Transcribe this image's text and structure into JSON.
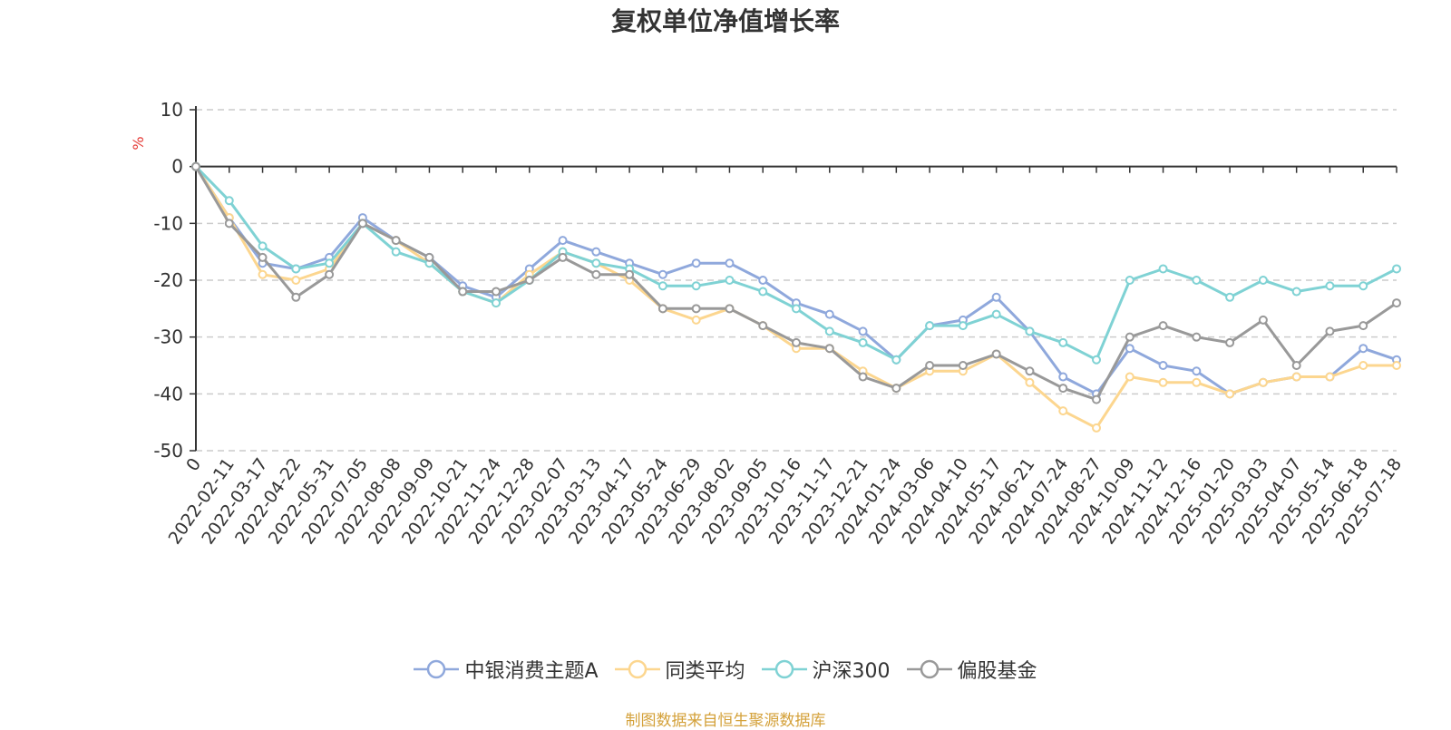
{
  "chart_data": {
    "type": "line",
    "title": "复权单位净值增长率",
    "ylabel": "%",
    "ylim": [
      -50,
      10
    ],
    "y_ticks": [
      "10",
      "0",
      "-10",
      "-20",
      "-30",
      "-40",
      "-50"
    ],
    "grid": true,
    "legend_position": "bottom",
    "x_labels": [
      "0",
      "2022-02-11",
      "2022-03-17",
      "2022-04-22",
      "2022-05-31",
      "2022-07-05",
      "2022-08-08",
      "2022-09-09",
      "2022-10-21",
      "2022-11-24",
      "2022-12-28",
      "2023-02-07",
      "2023-03-13",
      "2023-04-17",
      "2023-05-24",
      "2023-06-29",
      "2023-08-02",
      "2023-09-05",
      "2023-10-16",
      "2023-11-17",
      "2023-12-21",
      "2024-01-24",
      "2024-03-06",
      "2024-04-10",
      "2024-05-17",
      "2024-06-21",
      "2024-07-24",
      "2024-08-27",
      "2024-10-09",
      "2024-11-12",
      "2024-12-16",
      "2025-01-20",
      "2025-03-03",
      "2025-04-07",
      "2025-05-14",
      "2025-06-18",
      "2025-07-18"
    ],
    "series": [
      {
        "name": "中银消费主题A",
        "color": "#8fa8dc",
        "values": [
          0,
          -9,
          -17,
          -18,
          -16,
          -9,
          -13,
          -16,
          -21,
          -23,
          -18,
          -13,
          -15,
          -17,
          -19,
          -17,
          -17,
          -20,
          -24,
          -26,
          -29,
          -34,
          -28,
          -27,
          -23,
          -29,
          -37,
          -40,
          -32,
          -35,
          -36,
          -40,
          -38,
          -37,
          -37,
          -32,
          -34
        ]
      },
      {
        "name": "同类平均",
        "color": "#fcd68f",
        "values": [
          0,
          -9,
          -19,
          -20,
          -18,
          -10,
          -13,
          -17,
          -22,
          -24,
          -19,
          -15,
          -17,
          -20,
          -25,
          -27,
          -25,
          -28,
          -32,
          -32,
          -36,
          -39,
          -36,
          -36,
          -33,
          -38,
          -43,
          -46,
          -37,
          -38,
          -38,
          -40,
          -38,
          -37,
          -37,
          -35,
          -35
        ]
      },
      {
        "name": "沪深300",
        "color": "#7fd2d4",
        "values": [
          0,
          -6,
          -14,
          -18,
          -17,
          -10,
          -15,
          -17,
          -22,
          -24,
          -20,
          -15,
          -17,
          -18,
          -21,
          -21,
          -20,
          -22,
          -25,
          -29,
          -31,
          -34,
          -28,
          -28,
          -26,
          -29,
          -31,
          -34,
          -20,
          -18,
          -20,
          -23,
          -20,
          -22,
          -21,
          -21,
          -18
        ]
      },
      {
        "name": "偏股基金",
        "color": "#999999",
        "values": [
          0,
          -10,
          -16,
          -23,
          -19,
          -10,
          -13,
          -16,
          -22,
          -22,
          -20,
          -16,
          -19,
          -19,
          -25,
          -25,
          -25,
          -28,
          -31,
          -32,
          -37,
          -39,
          -35,
          -35,
          -33,
          -36,
          -39,
          -41,
          -30,
          -28,
          -30,
          -31,
          -27,
          -35,
          -29,
          -28,
          -24
        ]
      }
    ]
  },
  "source_note": "制图数据来自恒生聚源数据库"
}
